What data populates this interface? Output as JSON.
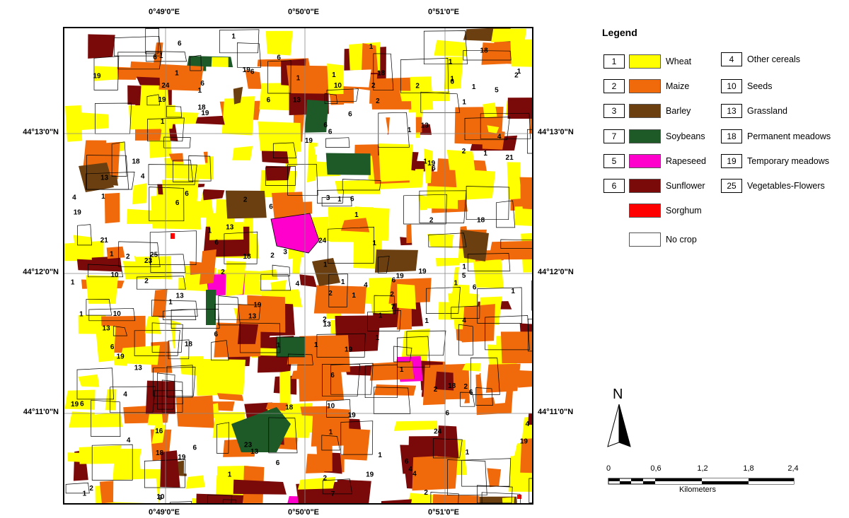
{
  "coordinates": {
    "top": [
      "0°49'0\"E",
      "0°50'0\"E",
      "0°51'0\"E"
    ],
    "bottom": [
      "0°49'0\"E",
      "0°50'0\"E",
      "0°51'0\"E"
    ],
    "left": [
      "44°13'0\"N",
      "44°12'0\"N",
      "44°11'0\"N"
    ],
    "right": [
      "44°13'0\"N",
      "44°12'0\"N",
      "44°11'0\"N"
    ]
  },
  "legend": {
    "title": "Legend",
    "classes": [
      {
        "code": "1",
        "label": "Wheat",
        "color": "#ffff00"
      },
      {
        "code": "2",
        "label": "Maize",
        "color": "#f06a0c"
      },
      {
        "code": "3",
        "label": "Barley",
        "color": "#6b3f10"
      },
      {
        "code": "7",
        "label": "Soybeans",
        "color": "#1e5a28"
      },
      {
        "code": "5",
        "label": "Rapeseed",
        "color": "#ff00cc"
      },
      {
        "code": "6",
        "label": "Sunflower",
        "color": "#7a0a0a"
      },
      {
        "code": "",
        "label": "Sorghum",
        "color": "#ff0000"
      },
      {
        "code": "",
        "label": "No crop",
        "color": "#ffffff"
      }
    ],
    "codes_only": [
      {
        "code": "4",
        "label": "Other cereals"
      },
      {
        "code": "10",
        "label": "Seeds"
      },
      {
        "code": "13",
        "label": "Grassland"
      },
      {
        "code": "18",
        "label": "Permanent meadows"
      },
      {
        "code": "19",
        "label": "Temporary meadows"
      },
      {
        "code": "25",
        "label": "Vegetables-Flowers"
      }
    ]
  },
  "north_arrow": {
    "letter": "N"
  },
  "scale_bar": {
    "ticks": [
      "0",
      "0,6",
      "1,2",
      "1,8",
      "2,4"
    ],
    "units": "Kilometers"
  },
  "parcel_labels": [
    "6",
    "4",
    "1",
    "16",
    "2",
    "1",
    "4",
    "6",
    "6",
    "19",
    "18",
    "1",
    "6",
    "1",
    "18",
    "6",
    "4",
    "1",
    "13",
    "4",
    "4",
    "18",
    "19",
    "1",
    "6",
    "10",
    "1",
    "18",
    "24",
    "6",
    "10",
    "19",
    "1",
    "1",
    "10",
    "1",
    "1",
    "1",
    "6",
    "4",
    "1",
    "1",
    "4",
    "1",
    "19",
    "1",
    "1",
    "1",
    "1",
    "18",
    "6",
    "1",
    "5",
    "5",
    "19",
    "6",
    "13",
    "10",
    "6",
    "13",
    "13",
    "6",
    "19",
    "1",
    "19",
    "19",
    "13",
    "13",
    "1",
    "2",
    "6",
    "3",
    "1",
    "6",
    "3",
    "1",
    "1",
    "1",
    "19",
    "6",
    "6",
    "6",
    "2",
    "2",
    "21",
    "2",
    "2",
    "2",
    "2",
    "2",
    "23",
    "2",
    "2",
    "2",
    "2",
    "2",
    "2",
    "24",
    "19",
    "2",
    "2",
    "24",
    "7",
    "7",
    "19",
    "19",
    "18",
    "6",
    "2",
    "1",
    "18",
    "19",
    "19",
    "21",
    "6",
    "13",
    "25",
    "13",
    "1",
    "1",
    "1",
    "19",
    "1",
    "4",
    "1",
    "6",
    "18",
    "18",
    "6",
    "1",
    "1",
    "13",
    "1",
    "1",
    "4",
    "6",
    "1",
    "6",
    "1",
    "1",
    "19",
    "18",
    "2",
    "4",
    "6",
    "6",
    "19",
    "1",
    "1",
    "4",
    "23",
    "10",
    "1",
    "6",
    "6",
    "6",
    "13"
  ],
  "class_colors": {
    "wheat": "#ffff00",
    "maize": "#f06a0c",
    "barley": "#6b3f10",
    "soybeans": "#1e5a28",
    "rapeseed": "#ff00cc",
    "sunflower": "#7a0a0a",
    "sorghum": "#ff0000",
    "no_crop": "#ffffff"
  }
}
